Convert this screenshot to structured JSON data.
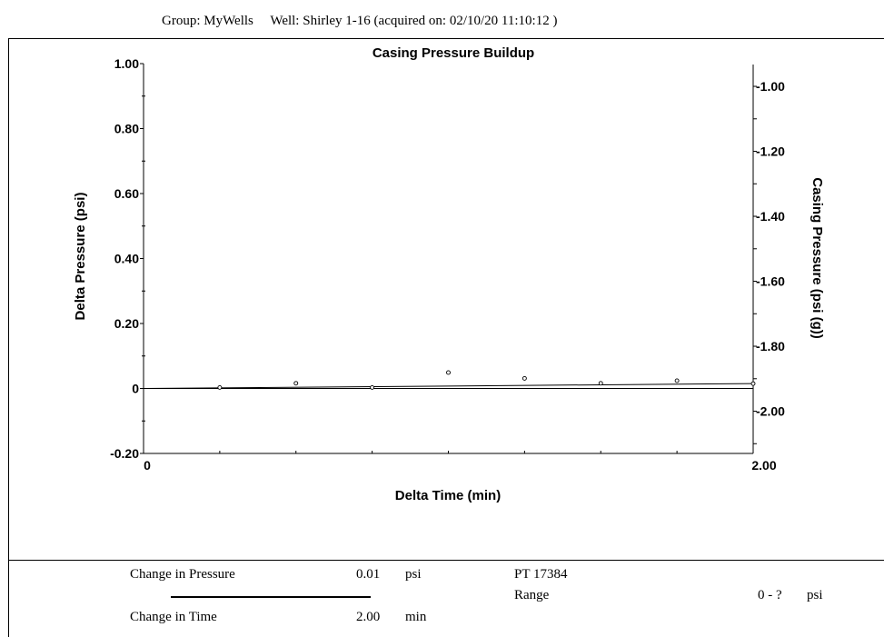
{
  "header": {
    "group_label": "Group: MyWells",
    "well_label": "Well: Shirley 1-16 (acquired on: 02/10/20 11:10:12 )"
  },
  "chart_data": {
    "type": "scatter",
    "title": "Casing Pressure Buildup",
    "xlabel": "Delta Time (min)",
    "ylabel": "Delta Pressure (psi)",
    "y2label": "Casing Pressure (psi (g))",
    "xlim": [
      0,
      2.0
    ],
    "ylim": [
      -0.2,
      1.0
    ],
    "y2lim": [
      -2.13,
      -0.93
    ],
    "x_tick_labels": [
      {
        "v": 0,
        "t": "0"
      },
      {
        "v": 2.0,
        "t": "2.00"
      }
    ],
    "y_tick_labels": [
      {
        "v": 1.0,
        "t": "1.00"
      },
      {
        "v": 0.8,
        "t": "0.80"
      },
      {
        "v": 0.6,
        "t": "0.60"
      },
      {
        "v": 0.4,
        "t": "0.40"
      },
      {
        "v": 0.2,
        "t": "0.20"
      },
      {
        "v": 0,
        "t": "0"
      },
      {
        "v": -0.2,
        "t": "-0.20"
      }
    ],
    "y2_tick_labels": [
      {
        "v": -1.0,
        "t": "-1.00"
      },
      {
        "v": -1.2,
        "t": "-1.20"
      },
      {
        "v": -1.4,
        "t": "-1.40"
      },
      {
        "v": -1.6,
        "t": "-1.60"
      },
      {
        "v": -1.8,
        "t": "-1.80"
      },
      {
        "v": -2.0,
        "t": "-2.00"
      }
    ],
    "points": [
      {
        "x": 0.25,
        "y": 0.003
      },
      {
        "x": 0.5,
        "y": 0.016
      },
      {
        "x": 0.75,
        "y": 0.003
      },
      {
        "x": 1.0,
        "y": 0.049
      },
      {
        "x": 1.25,
        "y": 0.031
      },
      {
        "x": 1.5,
        "y": 0.016
      },
      {
        "x": 1.75,
        "y": 0.024
      },
      {
        "x": 2.0,
        "y": 0.015
      }
    ],
    "trend": [
      {
        "x": 0,
        "y": 0
      },
      {
        "x": 2.0,
        "y": 0.015
      }
    ],
    "zero_line_y": 0,
    "grid": false,
    "legend": "none"
  },
  "footer": {
    "change_pressure_label": "Change in Pressure",
    "change_pressure_value": "0.01",
    "change_pressure_unit": "psi",
    "change_time_label": "Change in Time",
    "change_time_value": "2.00",
    "change_time_unit": "min",
    "gauge_id": "PT 17384",
    "range_label": "Range",
    "range_value": "0 - ?",
    "range_unit": "psi"
  }
}
